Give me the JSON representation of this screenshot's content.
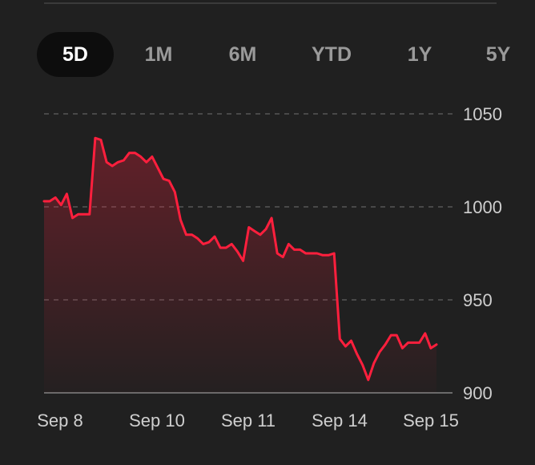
{
  "range_tabs": [
    {
      "label": "5D",
      "active": true
    },
    {
      "label": "1M",
      "active": false
    },
    {
      "label": "6M",
      "active": false
    },
    {
      "label": "YTD",
      "active": false
    },
    {
      "label": "1Y",
      "active": false
    },
    {
      "label": "5Y",
      "active": false
    }
  ],
  "colors": {
    "line": "#ff1f3d",
    "grid": "#555555",
    "axis": "#cfcfcf"
  },
  "chart_data": {
    "type": "area",
    "x_labels": [
      "Sep 8",
      "Sep 10",
      "Sep 11",
      "Sep 14",
      "Sep 15"
    ],
    "y_ticks": [
      "1050",
      "1000",
      "950",
      "900"
    ],
    "ylim": [
      900,
      1060
    ],
    "grid": true,
    "y_axis_position": "right",
    "series": [
      {
        "values": [
          1003,
          1003,
          1005,
          1001,
          1007,
          994,
          996,
          996,
          996,
          1037,
          1036,
          1024,
          1022,
          1024,
          1025,
          1029,
          1029,
          1027,
          1024,
          1027,
          1021,
          1015,
          1014,
          1008,
          993,
          985,
          985,
          983,
          980,
          981,
          984,
          978,
          978,
          980,
          976,
          971,
          989,
          987,
          985,
          988,
          994,
          975,
          973,
          980,
          977,
          977,
          975,
          975,
          975,
          974,
          974,
          975,
          929,
          925,
          928,
          921,
          915,
          907,
          916,
          922,
          926,
          931,
          931,
          924,
          927,
          927,
          927,
          932,
          924,
          926
        ]
      }
    ]
  }
}
